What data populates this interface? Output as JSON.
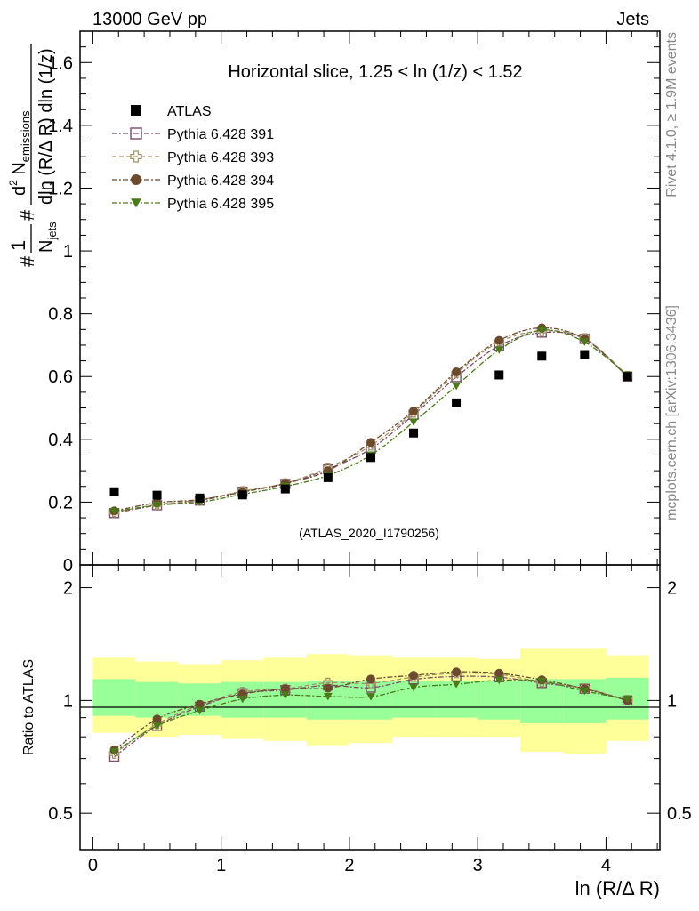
{
  "header": {
    "left": "13000 GeV pp",
    "right": "Jets"
  },
  "chart_data": {
    "type": "scatter",
    "title": "Horizontal slice, 1.25 < ln (1/z) < 1.52",
    "xlabel": "ln (R/Δ R)",
    "ylabel_upper": "dN/dln(R/ΔR)dln(1/z) per jet",
    "ylabel_lower": "Ratio to ATLAS",
    "analysis_tag": "(ATLAS_2020_I1790256)",
    "side_label_top": "Rivet 4.1.0, ≥ 1.9M events",
    "side_label_bottom": "mcplots.cern.ch [arXiv:1306.3436]",
    "xlim": [
      -0.1,
      4.42
    ],
    "ylim_upper": [
      0,
      1.7
    ],
    "ylim_lower": [
      0.4,
      2.3
    ],
    "x_ticks": [
      "0",
      "1",
      "2",
      "3",
      "4"
    ],
    "y_ticks_upper": [
      "0",
      "0.2",
      "0.4",
      "0.6",
      "0.8",
      "1",
      "1.2",
      "1.4",
      "1.6"
    ],
    "y_ticks_lower": [
      "0.5",
      "1",
      "2"
    ],
    "x": [
      0.167,
      0.5,
      0.833,
      1.167,
      1.5,
      1.833,
      2.167,
      2.5,
      2.833,
      3.167,
      3.5,
      3.833,
      4.167
    ],
    "bin_edges": [
      0,
      0.333,
      0.667,
      1.0,
      1.333,
      1.667,
      2.0,
      2.333,
      2.667,
      3.0,
      3.333,
      3.667,
      4.0,
      4.333
    ],
    "band_inner": [
      [
        0.91,
        1.14
      ],
      [
        0.9,
        1.12
      ],
      [
        0.91,
        1.11
      ],
      [
        0.9,
        1.12
      ],
      [
        0.9,
        1.12
      ],
      [
        0.89,
        1.13
      ],
      [
        0.89,
        1.13
      ],
      [
        0.9,
        1.13
      ],
      [
        0.9,
        1.13
      ],
      [
        0.89,
        1.13
      ],
      [
        0.87,
        1.14
      ],
      [
        0.87,
        1.14
      ],
      [
        0.89,
        1.15
      ]
    ],
    "band_outer": [
      [
        0.82,
        1.3
      ],
      [
        0.8,
        1.27
      ],
      [
        0.81,
        1.25
      ],
      [
        0.79,
        1.28
      ],
      [
        0.78,
        1.3
      ],
      [
        0.76,
        1.33
      ],
      [
        0.77,
        1.32
      ],
      [
        0.8,
        1.3
      ],
      [
        0.8,
        1.3
      ],
      [
        0.8,
        1.29
      ],
      [
        0.73,
        1.38
      ],
      [
        0.72,
        1.38
      ],
      [
        0.78,
        1.32
      ]
    ],
    "series": [
      {
        "name": "ATLAS",
        "color": "#000000",
        "marker": "square-filled",
        "values": [
          0.233,
          0.222,
          0.213,
          0.223,
          0.242,
          0.278,
          0.342,
          0.42,
          0.516,
          0.605,
          0.665,
          0.67,
          0.6
        ]
      },
      {
        "name": "Pythia 6.428 391",
        "color": "#7a4e6a",
        "marker": "square-open",
        "dash": "6,2,2,2",
        "values": [
          0.165,
          0.19,
          0.205,
          0.233,
          0.258,
          0.305,
          0.37,
          0.478,
          0.598,
          0.698,
          0.74,
          0.72,
          0.6
        ]
      },
      {
        "name": "Pythia 6.428 393",
        "color": "#a39366",
        "marker": "cross-open",
        "dash": "5,3",
        "values": [
          0.168,
          0.192,
          0.207,
          0.235,
          0.26,
          0.31,
          0.38,
          0.485,
          0.61,
          0.71,
          0.745,
          0.722,
          0.602
        ]
      },
      {
        "name": "Pythia 6.428 394",
        "color": "#6b4a2e",
        "marker": "circle-filled",
        "dash": "6,2,2,2",
        "values": [
          0.172,
          0.198,
          0.208,
          0.232,
          0.26,
          0.3,
          0.39,
          0.49,
          0.615,
          0.715,
          0.755,
          0.72,
          0.6
        ]
      },
      {
        "name": "Pythia 6.428 395",
        "color": "#4a7a1a",
        "marker": "triangle-down-filled",
        "dash": "6,2,2,2",
        "values": [
          0.17,
          0.19,
          0.2,
          0.225,
          0.25,
          0.285,
          0.35,
          0.455,
          0.57,
          0.685,
          0.748,
          0.71,
          0.605
        ]
      }
    ]
  }
}
